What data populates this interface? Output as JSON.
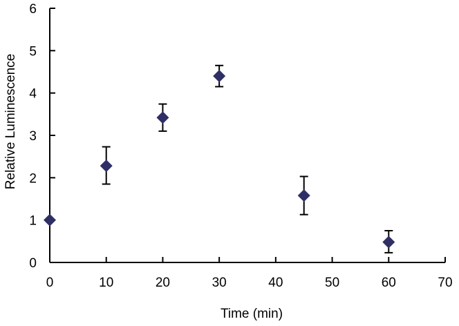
{
  "chart_data": {
    "type": "scatter",
    "title": "",
    "xlabel": "Time (min)",
    "ylabel": "Relative Luminescence",
    "xlim": [
      0,
      70
    ],
    "ylim": [
      0,
      6
    ],
    "xticks": [
      "0",
      "10",
      "20",
      "30",
      "40",
      "50",
      "60",
      "70"
    ],
    "yticks": [
      "0",
      "1",
      "2",
      "3",
      "4",
      "5",
      "6"
    ],
    "grid": false,
    "legend": "none",
    "marker_color": "#2f2f66",
    "points": [
      {
        "x": 0,
        "y": 1.0,
        "err_low": 0.0,
        "err_high": 0.0
      },
      {
        "x": 10,
        "y": 2.28,
        "err_low": 0.43,
        "err_high": 0.45
      },
      {
        "x": 20,
        "y": 3.42,
        "err_low": 0.32,
        "err_high": 0.32
      },
      {
        "x": 30,
        "y": 4.4,
        "err_low": 0.25,
        "err_high": 0.25
      },
      {
        "x": 45,
        "y": 1.58,
        "err_low": 0.45,
        "err_high": 0.45
      },
      {
        "x": 60,
        "y": 0.48,
        "err_low": 0.25,
        "err_high": 0.27
      }
    ]
  }
}
